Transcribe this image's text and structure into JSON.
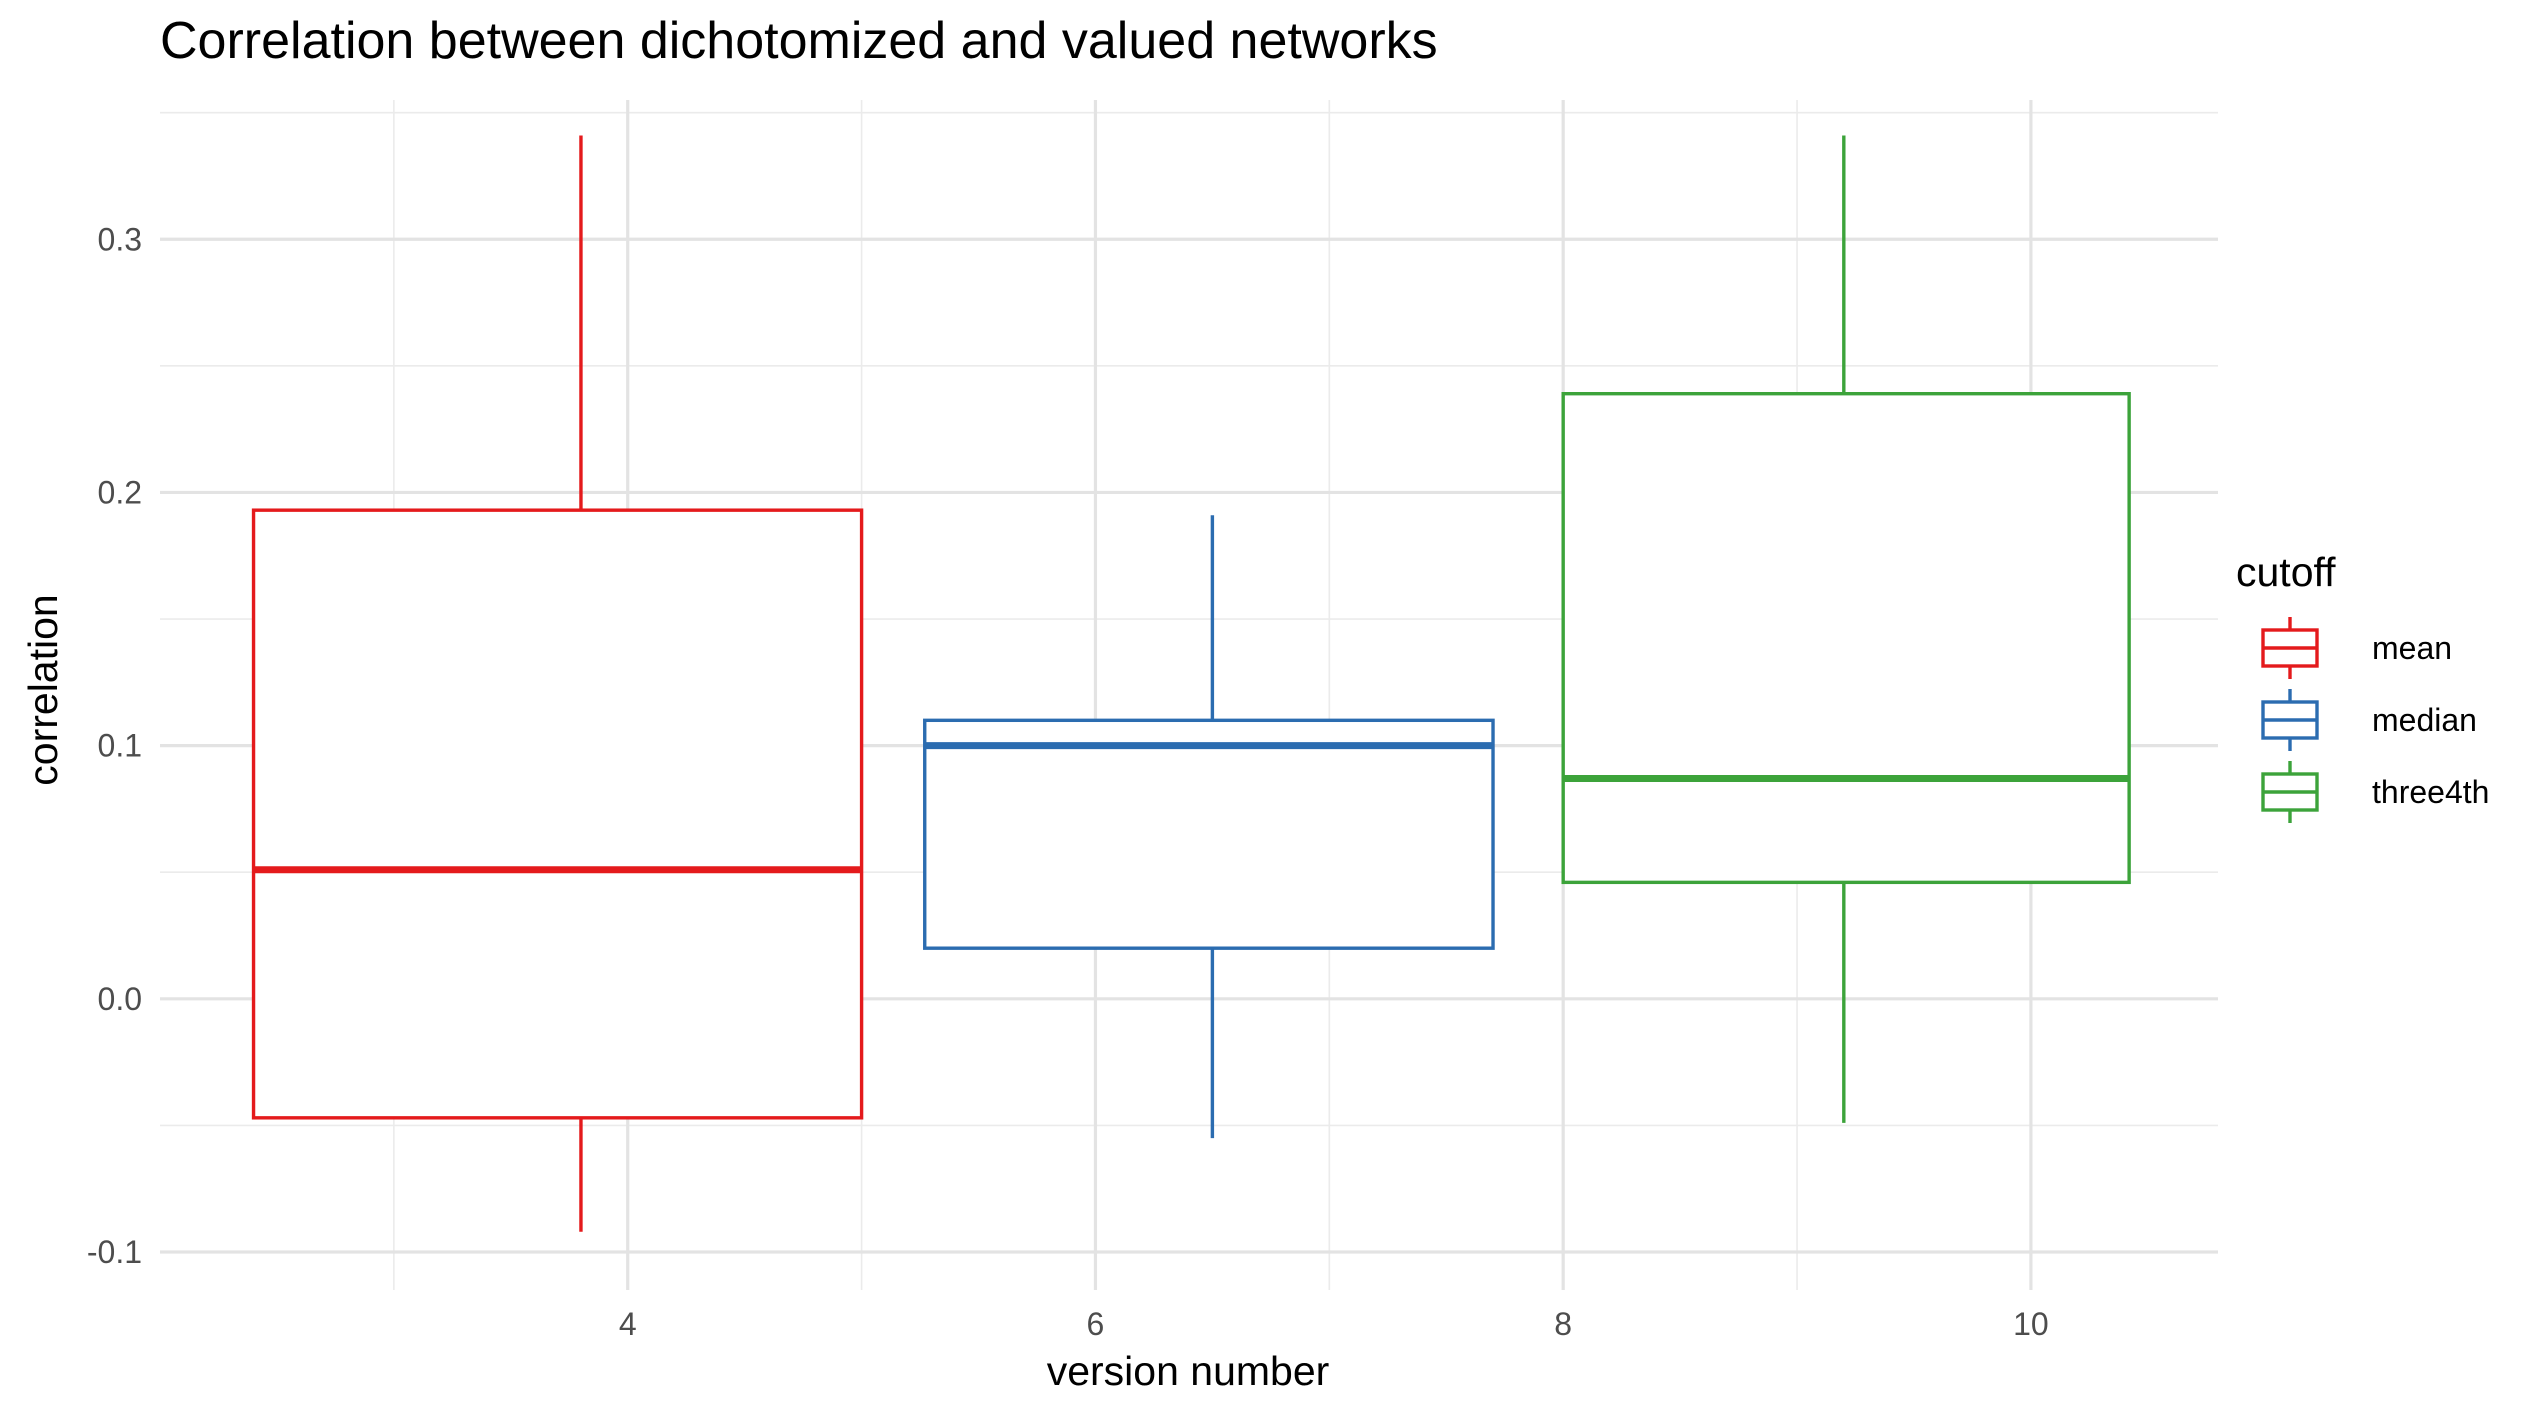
{
  "chart_data": {
    "type": "boxplot",
    "title": "Correlation between dichotomized and valued networks",
    "xlabel": "version number",
    "ylabel": "correlation",
    "xlim": [
      2.0,
      10.8
    ],
    "ylim": [
      -0.115,
      0.355
    ],
    "x_ticks": [
      4,
      6,
      8,
      10
    ],
    "x_tick_labels": [
      "4",
      "6",
      "8",
      "10"
    ],
    "y_ticks": [
      -0.1,
      0.0,
      0.1,
      0.2,
      0.3
    ],
    "y_tick_labels": [
      "-0.1",
      "0.0",
      "0.1",
      "0.2",
      "0.3"
    ],
    "grid": true,
    "legend": {
      "title": "cutoff",
      "position": "right"
    },
    "series": [
      {
        "name": "mean",
        "color": "#e41a1c",
        "x_left": 2.4,
        "x_right": 5.0,
        "x_center": 3.8,
        "whisker_low": -0.092,
        "q1": -0.047,
        "median": 0.051,
        "q3": 0.193,
        "whisker_high": 0.341
      },
      {
        "name": "median",
        "color": "#2b6cb0",
        "x_left": 5.27,
        "x_right": 7.7,
        "x_center": 6.5,
        "whisker_low": -0.055,
        "q1": 0.02,
        "median": 0.1,
        "q3": 0.11,
        "whisker_high": 0.191
      },
      {
        "name": "three4th",
        "color": "#3ca33a",
        "x_left": 8.0,
        "x_right": 10.42,
        "x_center": 9.2,
        "whisker_low": -0.049,
        "q1": 0.046,
        "median": 0.087,
        "q3": 0.239,
        "whisker_high": 0.341
      }
    ]
  }
}
